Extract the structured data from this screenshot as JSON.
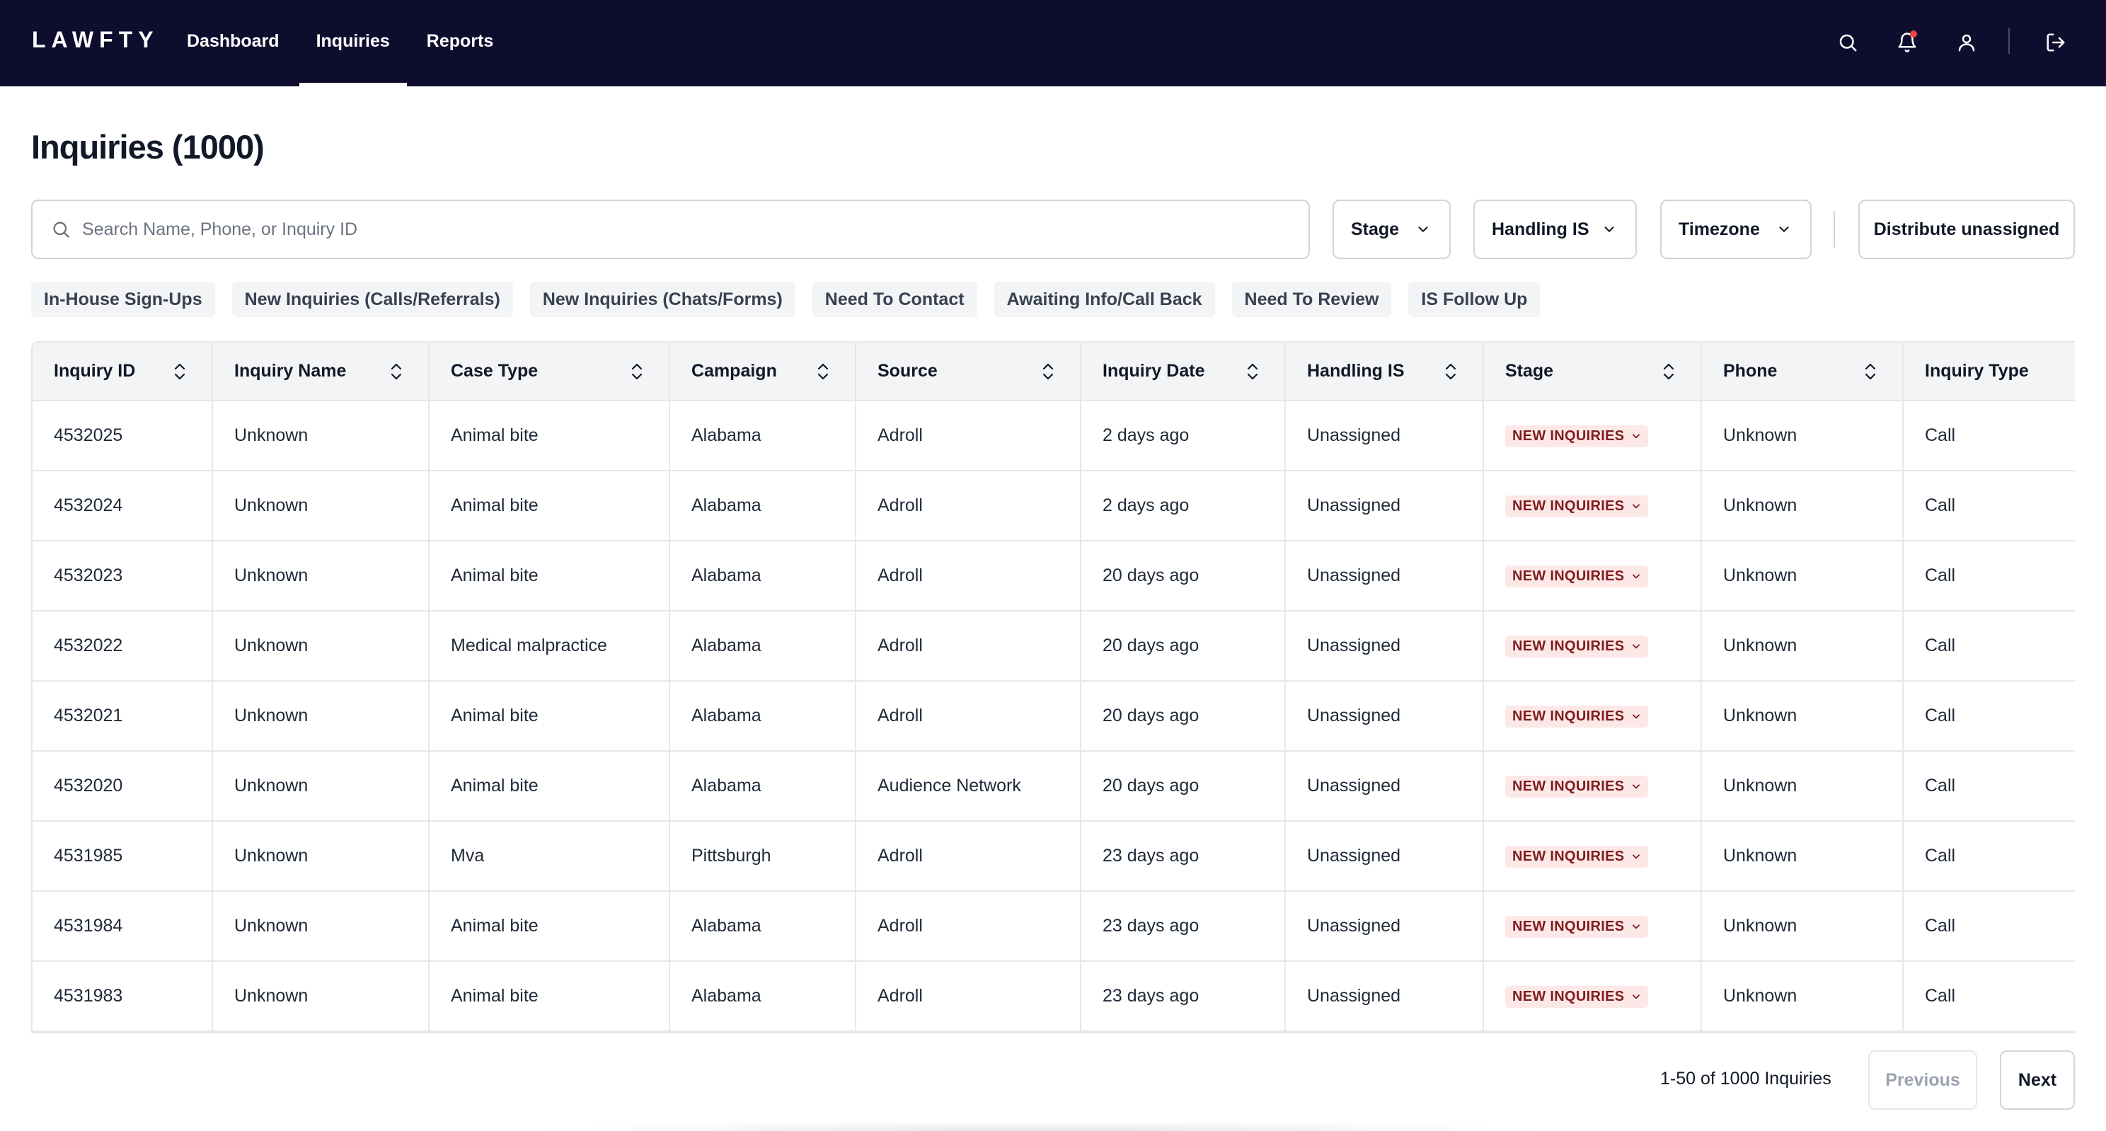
{
  "app": {
    "logo": "LAWFTY"
  },
  "nav": {
    "items": [
      {
        "label": "Dashboard",
        "active": false
      },
      {
        "label": "Inquiries",
        "active": true
      },
      {
        "label": "Reports",
        "active": false
      }
    ]
  },
  "top_icons": [
    "search-icon",
    "bell-icon",
    "user-icon",
    "logout-icon"
  ],
  "page": {
    "title": "Inquiries (1000)"
  },
  "search": {
    "placeholder": "Search Name, Phone, or Inquiry ID",
    "value": ""
  },
  "filters": {
    "stage": "Stage",
    "handling": "Handling IS",
    "timezone": "Timezone",
    "distribute": "Distribute unassigned"
  },
  "chips": [
    "In-House Sign-Ups",
    "New Inquiries (Calls/Referrals)",
    "New Inquiries (Chats/Forms)",
    "Need To Contact",
    "Awaiting Info/Call Back",
    "Need To Review",
    "IS Follow Up"
  ],
  "table": {
    "columns": [
      "Inquiry ID",
      "Inquiry Name",
      "Case Type",
      "Campaign",
      "Source",
      "Inquiry Date",
      "Handling IS",
      "Stage",
      "Phone",
      "Inquiry Type"
    ],
    "rows": [
      [
        "4532025",
        "Unknown",
        "Animal bite",
        "Alabama",
        "Adroll",
        "2 days ago",
        "Unassigned",
        "NEW INQUIRIES",
        "Unknown",
        "Call"
      ],
      [
        "4532024",
        "Unknown",
        "Animal bite",
        "Alabama",
        "Adroll",
        "2 days ago",
        "Unassigned",
        "NEW INQUIRIES",
        "Unknown",
        "Call"
      ],
      [
        "4532023",
        "Unknown",
        "Animal bite",
        "Alabama",
        "Adroll",
        "20 days ago",
        "Unassigned",
        "NEW INQUIRIES",
        "Unknown",
        "Call"
      ],
      [
        "4532022",
        "Unknown",
        "Medical malpractice",
        "Alabama",
        "Adroll",
        "20 days ago",
        "Unassigned",
        "NEW INQUIRIES",
        "Unknown",
        "Call"
      ],
      [
        "4532021",
        "Unknown",
        "Animal bite",
        "Alabama",
        "Adroll",
        "20 days ago",
        "Unassigned",
        "NEW INQUIRIES",
        "Unknown",
        "Call"
      ],
      [
        "4532020",
        "Unknown",
        "Animal bite",
        "Alabama",
        "Audience Network",
        "20 days ago",
        "Unassigned",
        "NEW INQUIRIES",
        "Unknown",
        "Call"
      ],
      [
        "4531985",
        "Unknown",
        "Mva",
        "Pittsburgh",
        "Adroll",
        "23 days ago",
        "Unassigned",
        "NEW INQUIRIES",
        "Unknown",
        "Call"
      ],
      [
        "4531984",
        "Unknown",
        "Animal bite",
        "Alabama",
        "Adroll",
        "23 days ago",
        "Unassigned",
        "NEW INQUIRIES",
        "Unknown",
        "Call"
      ],
      [
        "4531983",
        "Unknown",
        "Animal bite",
        "Alabama",
        "Adroll",
        "23 days ago",
        "Unassigned",
        "NEW INQUIRIES",
        "Unknown",
        "Call"
      ]
    ]
  },
  "pagination": {
    "summary": "1-50 of 1000 Inquiries",
    "previous": "Previous",
    "next": "Next"
  },
  "colors": {
    "topbar": "#0f0d2e",
    "badge_bg": "#fde8e8",
    "badge_text": "#7f1d1d",
    "notif_dot": "#ef4444"
  }
}
